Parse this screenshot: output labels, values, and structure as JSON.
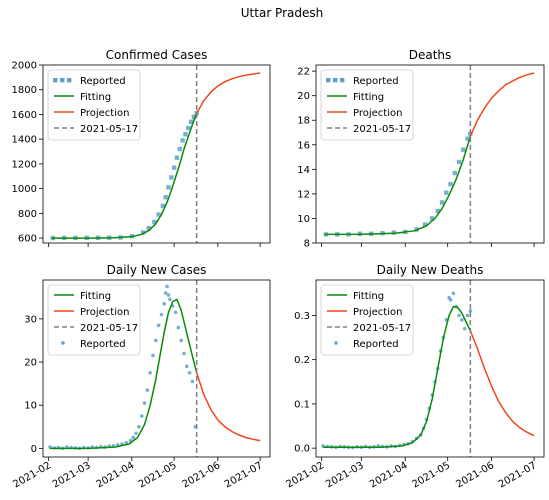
{
  "figure": {
    "suptitle": "Uttar Pradesh"
  },
  "colors": {
    "reported": "#5ea2c9",
    "fitting": "#0a8a0a",
    "projection": "#f0461a",
    "cutoff": "#808080"
  },
  "x_axis": {
    "ticks": [
      "2021-02",
      "2021-03",
      "2021-04",
      "2021-05",
      "2021-06",
      "2021-07"
    ],
    "cutoff_date": "2021-05-17"
  },
  "chart_data": [
    {
      "type": "line",
      "title": "Confirmed Cases",
      "xlabel": "",
      "ylabel": "",
      "ylim": [
        560,
        2000
      ],
      "yticks": [
        600,
        800,
        1000,
        1200,
        1400,
        1600,
        1800,
        2000
      ],
      "legend": {
        "placement": "top-left",
        "entries": [
          "Reported",
          "Fitting",
          "Projection",
          "2021-05-17"
        ]
      },
      "series": [
        {
          "name": "Reported",
          "style": "scatter-square",
          "x": [
            "2021-02-04",
            "2021-02-12",
            "2021-02-20",
            "2021-02-28",
            "2021-03-08",
            "2021-03-16",
            "2021-03-24",
            "2021-04-01",
            "2021-04-09",
            "2021-04-13",
            "2021-04-17",
            "2021-04-20",
            "2021-04-23",
            "2021-04-25",
            "2021-04-27",
            "2021-04-29",
            "2021-05-01",
            "2021-05-03",
            "2021-05-05",
            "2021-05-07",
            "2021-05-09",
            "2021-05-11",
            "2021-05-13",
            "2021-05-15",
            "2021-05-17"
          ],
          "y": [
            600,
            601,
            601,
            602,
            602,
            603,
            605,
            615,
            645,
            680,
            730,
            790,
            860,
            930,
            1010,
            1090,
            1170,
            1250,
            1320,
            1390,
            1440,
            1490,
            1540,
            1580,
            1610
          ]
        },
        {
          "name": "Fitting",
          "style": "line",
          "x": [
            "2021-02-03",
            "2021-03-01",
            "2021-03-20",
            "2021-04-01",
            "2021-04-08",
            "2021-04-13",
            "2021-04-18",
            "2021-04-22",
            "2021-04-26",
            "2021-04-29",
            "2021-05-02",
            "2021-05-05",
            "2021-05-08",
            "2021-05-11",
            "2021-05-14",
            "2021-05-17"
          ],
          "y": [
            600,
            600,
            602,
            612,
            630,
            660,
            715,
            790,
            890,
            985,
            1090,
            1200,
            1320,
            1420,
            1520,
            1610
          ]
        },
        {
          "name": "Projection",
          "style": "line",
          "x": [
            "2021-05-17",
            "2021-05-22",
            "2021-05-27",
            "2021-06-01",
            "2021-06-06",
            "2021-06-11",
            "2021-06-16",
            "2021-06-21",
            "2021-06-26",
            "2021-07-01"
          ],
          "y": [
            1610,
            1710,
            1780,
            1830,
            1865,
            1888,
            1905,
            1918,
            1927,
            1935
          ]
        }
      ]
    },
    {
      "type": "line",
      "title": "Deaths",
      "xlabel": "",
      "ylabel": "",
      "ylim": [
        8,
        22.5
      ],
      "yticks": [
        8,
        10,
        12,
        14,
        16,
        18,
        20,
        22
      ],
      "legend": {
        "placement": "top-left",
        "entries": [
          "Reported",
          "Fitting",
          "Projection",
          "2021-05-17"
        ]
      },
      "series": [
        {
          "name": "Reported",
          "style": "scatter-square",
          "x": [
            "2021-02-04",
            "2021-02-12",
            "2021-02-20",
            "2021-02-28",
            "2021-03-08",
            "2021-03-16",
            "2021-03-24",
            "2021-04-01",
            "2021-04-09",
            "2021-04-15",
            "2021-04-20",
            "2021-04-24",
            "2021-04-27",
            "2021-04-30",
            "2021-05-03",
            "2021-05-06",
            "2021-05-09",
            "2021-05-12",
            "2021-05-15",
            "2021-05-17"
          ],
          "y": [
            8.7,
            8.7,
            8.7,
            8.75,
            8.75,
            8.8,
            8.85,
            8.9,
            9.1,
            9.5,
            10.0,
            10.6,
            11.3,
            12.1,
            12.8,
            13.7,
            14.6,
            15.6,
            16.5,
            16.9
          ]
        },
        {
          "name": "Fitting",
          "style": "line",
          "x": [
            "2021-02-03",
            "2021-03-01",
            "2021-03-25",
            "2021-04-08",
            "2021-04-16",
            "2021-04-22",
            "2021-04-27",
            "2021-05-02",
            "2021-05-07",
            "2021-05-12",
            "2021-05-17"
          ],
          "y": [
            8.7,
            8.72,
            8.8,
            9.0,
            9.4,
            10.0,
            10.8,
            11.9,
            13.2,
            14.8,
            16.7
          ]
        },
        {
          "name": "Projection",
          "style": "line",
          "x": [
            "2021-05-17",
            "2021-05-22",
            "2021-05-27",
            "2021-06-01",
            "2021-06-06",
            "2021-06-11",
            "2021-06-16",
            "2021-06-21",
            "2021-06-26",
            "2021-07-01"
          ],
          "y": [
            16.7,
            18.0,
            19.0,
            19.8,
            20.4,
            20.9,
            21.2,
            21.5,
            21.7,
            21.85
          ]
        }
      ]
    },
    {
      "type": "line",
      "title": "Daily New Cases",
      "xlabel": "",
      "ylabel": "",
      "ylim": [
        -2,
        39
      ],
      "yticks": [
        0,
        10,
        20,
        30
      ],
      "legend": {
        "placement": "top-left",
        "entries": [
          "Fitting",
          "Projection",
          "2021-05-17",
          "Reported"
        ]
      },
      "series": [
        {
          "name": "Reported",
          "style": "scatter-dot",
          "x": [
            "2021-02-02",
            "2021-02-05",
            "2021-02-08",
            "2021-02-11",
            "2021-02-14",
            "2021-02-17",
            "2021-02-20",
            "2021-02-23",
            "2021-02-26",
            "2021-03-01",
            "2021-03-04",
            "2021-03-07",
            "2021-03-10",
            "2021-03-13",
            "2021-03-16",
            "2021-03-19",
            "2021-03-22",
            "2021-03-25",
            "2021-03-28",
            "2021-03-31",
            "2021-04-02",
            "2021-04-04",
            "2021-04-06",
            "2021-04-08",
            "2021-04-10",
            "2021-04-12",
            "2021-04-14",
            "2021-04-16",
            "2021-04-18",
            "2021-04-20",
            "2021-04-22",
            "2021-04-24",
            "2021-04-25",
            "2021-04-26",
            "2021-04-27",
            "2021-04-28",
            "2021-04-30",
            "2021-05-02",
            "2021-05-04",
            "2021-05-06",
            "2021-05-08",
            "2021-05-10",
            "2021-05-12",
            "2021-05-14",
            "2021-05-16"
          ],
          "y": [
            0.3,
            0.1,
            0.2,
            0.0,
            0.3,
            0.2,
            0.1,
            0.0,
            0.2,
            0.1,
            0.3,
            0.2,
            0.4,
            0.3,
            0.5,
            0.6,
            0.8,
            1.0,
            1.3,
            1.8,
            2.5,
            3.5,
            5.0,
            7.5,
            10.5,
            13.5,
            17.5,
            21.5,
            25.0,
            28.5,
            31.0,
            33.5,
            36.0,
            37.5,
            35.5,
            34.5,
            33.0,
            31.5,
            28.0,
            25.0,
            22.0,
            19.0,
            17.5,
            15.5,
            5.0
          ]
        },
        {
          "name": "Fitting",
          "style": "line",
          "x": [
            "2021-02-02",
            "2021-03-01",
            "2021-03-20",
            "2021-03-30",
            "2021-04-05",
            "2021-04-10",
            "2021-04-14",
            "2021-04-18",
            "2021-04-21",
            "2021-04-24",
            "2021-04-27",
            "2021-04-30",
            "2021-05-03",
            "2021-05-06",
            "2021-05-09",
            "2021-05-12",
            "2021-05-15",
            "2021-05-17"
          ],
          "y": [
            0,
            0,
            0.3,
            1.0,
            2.5,
            5.5,
            10.0,
            16.0,
            21.5,
            27.0,
            31.5,
            34.0,
            34.5,
            32.0,
            28.0,
            24.0,
            20.0,
            17.5
          ]
        },
        {
          "name": "Projection",
          "style": "line",
          "x": [
            "2021-05-17",
            "2021-05-22",
            "2021-05-27",
            "2021-06-01",
            "2021-06-06",
            "2021-06-11",
            "2021-06-16",
            "2021-06-21",
            "2021-06-26",
            "2021-07-01"
          ],
          "y": [
            17.5,
            12.5,
            9.0,
            6.6,
            5.0,
            3.9,
            3.1,
            2.5,
            2.1,
            1.8
          ]
        }
      ]
    },
    {
      "type": "line",
      "title": "Daily New Deaths",
      "xlabel": "",
      "ylabel": "",
      "ylim": [
        -0.02,
        0.38
      ],
      "yticks": [
        0.0,
        0.1,
        0.2,
        0.3
      ],
      "legend": {
        "placement": "top-left",
        "entries": [
          "Fitting",
          "Projection",
          "2021-05-17",
          "Reported"
        ]
      },
      "series": [
        {
          "name": "Reported",
          "style": "scatter-dot",
          "x": [
            "2021-02-02",
            "2021-02-05",
            "2021-02-08",
            "2021-02-11",
            "2021-02-14",
            "2021-02-17",
            "2021-02-20",
            "2021-02-23",
            "2021-02-26",
            "2021-03-01",
            "2021-03-04",
            "2021-03-07",
            "2021-03-10",
            "2021-03-13",
            "2021-03-16",
            "2021-03-19",
            "2021-03-22",
            "2021-03-25",
            "2021-03-28",
            "2021-03-31",
            "2021-04-03",
            "2021-04-06",
            "2021-04-09",
            "2021-04-12",
            "2021-04-14",
            "2021-04-16",
            "2021-04-18",
            "2021-04-20",
            "2021-04-22",
            "2021-04-24",
            "2021-04-26",
            "2021-04-28",
            "2021-04-30",
            "2021-05-02",
            "2021-05-03",
            "2021-05-05",
            "2021-05-07",
            "2021-05-09",
            "2021-05-11",
            "2021-05-13",
            "2021-05-15",
            "2021-05-17"
          ],
          "y": [
            0.005,
            0.004,
            0.003,
            0.002,
            0.004,
            0.003,
            0.002,
            0.001,
            0.003,
            0.002,
            0.004,
            0.002,
            0.003,
            0.005,
            0.004,
            0.003,
            0.005,
            0.004,
            0.006,
            0.008,
            0.01,
            0.015,
            0.022,
            0.03,
            0.045,
            0.065,
            0.09,
            0.12,
            0.15,
            0.18,
            0.22,
            0.25,
            0.29,
            0.34,
            0.335,
            0.35,
            0.32,
            0.3,
            0.29,
            0.27,
            0.3,
            0.31
          ]
        },
        {
          "name": "Fitting",
          "style": "line",
          "x": [
            "2021-02-02",
            "2021-03-15",
            "2021-03-30",
            "2021-04-06",
            "2021-04-12",
            "2021-04-16",
            "2021-04-20",
            "2021-04-24",
            "2021-04-28",
            "2021-05-02",
            "2021-05-05",
            "2021-05-08",
            "2021-05-11",
            "2021-05-14",
            "2021-05-17"
          ],
          "y": [
            0.002,
            0.002,
            0.005,
            0.012,
            0.03,
            0.06,
            0.11,
            0.18,
            0.25,
            0.3,
            0.32,
            0.318,
            0.305,
            0.285,
            0.265
          ]
        },
        {
          "name": "Projection",
          "style": "line",
          "x": [
            "2021-05-17",
            "2021-05-22",
            "2021-05-27",
            "2021-06-01",
            "2021-06-06",
            "2021-06-11",
            "2021-06-16",
            "2021-06-21",
            "2021-06-26",
            "2021-07-01"
          ],
          "y": [
            0.265,
            0.225,
            0.18,
            0.14,
            0.105,
            0.08,
            0.06,
            0.046,
            0.036,
            0.028
          ]
        }
      ]
    }
  ]
}
